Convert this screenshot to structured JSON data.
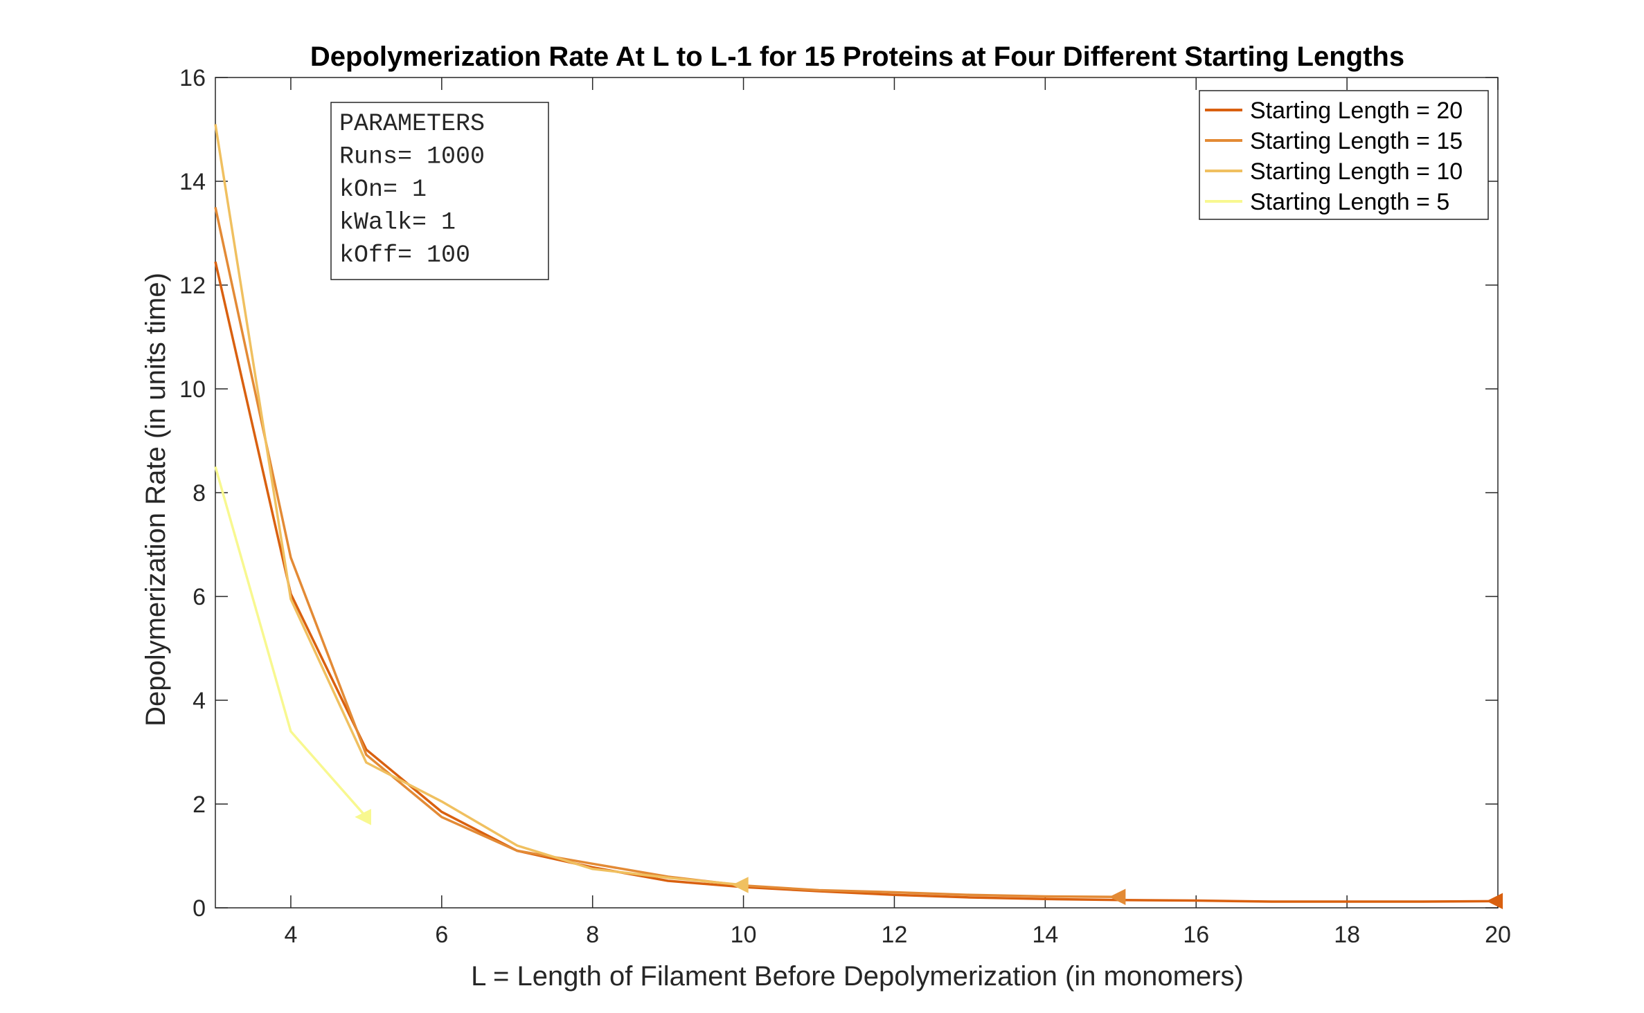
{
  "chart_data": {
    "type": "line",
    "title": "Depolymerization Rate At L to L-1 for 15 Proteins at Four Different Starting Lengths",
    "xlabel": "L = Length of Filament Before Depolymerization (in monomers)",
    "ylabel": "Depolymerization Rate (in units time)",
    "xlim": [
      3,
      20
    ],
    "ylim": [
      0,
      16
    ],
    "xticks": [
      4,
      6,
      8,
      10,
      12,
      14,
      16,
      18,
      20
    ],
    "yticks": [
      0,
      2,
      4,
      6,
      8,
      10,
      12,
      14,
      16
    ],
    "grid": false,
    "legend_position": "top-right",
    "annotation": {
      "lines": [
        "PARAMETERS",
        "Runs= 1000",
        "kOn= 1",
        "kWalk= 1",
        "kOff= 100"
      ]
    },
    "series": [
      {
        "name": "Starting Length = 20",
        "color": "#d9600f",
        "end_marker": "triangle-left",
        "x": [
          3,
          4,
          5,
          6,
          7,
          8,
          9,
          10,
          11,
          12,
          13,
          14,
          15,
          16,
          17,
          18,
          19,
          20
        ],
        "y": [
          12.45,
          6.05,
          3.05,
          1.85,
          1.1,
          0.78,
          0.52,
          0.4,
          0.32,
          0.25,
          0.2,
          0.17,
          0.15,
          0.14,
          0.12,
          0.12,
          0.12,
          0.13
        ]
      },
      {
        "name": "Starting Length = 15",
        "color": "#e38a35",
        "end_marker": "triangle-left",
        "x": [
          3,
          4,
          5,
          6,
          7,
          8,
          9,
          10,
          11,
          12,
          13,
          14,
          15
        ],
        "y": [
          13.5,
          6.75,
          2.95,
          1.75,
          1.1,
          0.85,
          0.6,
          0.43,
          0.34,
          0.3,
          0.25,
          0.22,
          0.21
        ]
      },
      {
        "name": "Starting Length = 10",
        "color": "#f0c060",
        "end_marker": "triangle-left",
        "x": [
          3,
          4,
          5,
          6,
          7,
          8,
          9,
          10
        ],
        "y": [
          15.1,
          5.95,
          2.8,
          2.05,
          1.2,
          0.75,
          0.58,
          0.44
        ]
      },
      {
        "name": "Starting Length = 5",
        "color": "#f8f890",
        "end_marker": "triangle-left",
        "x": [
          3,
          4,
          5
        ],
        "y": [
          8.5,
          3.4,
          1.75
        ]
      }
    ]
  }
}
